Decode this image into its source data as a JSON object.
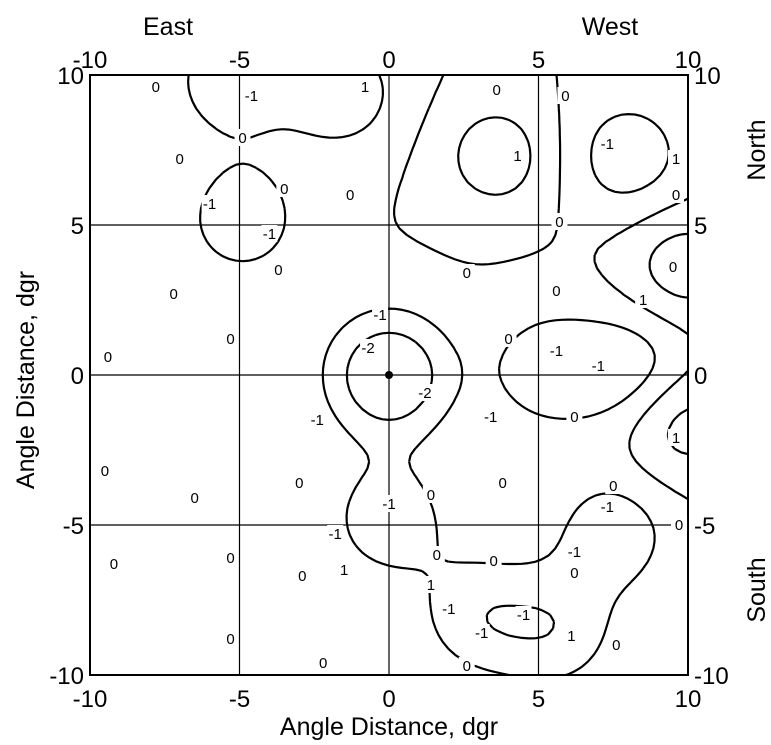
{
  "chart_data": {
    "type": "contour",
    "x_axis": {
      "label": "Angle Distance, dgr",
      "range": [
        -10,
        10
      ],
      "ticks": [
        -10,
        -5,
        0,
        5,
        10
      ]
    },
    "y_axis": {
      "label": "Angle Distance, dgr",
      "range": [
        -10,
        10
      ],
      "ticks": [
        -10,
        -5,
        0,
        5,
        10
      ]
    },
    "direction_labels": {
      "top_left": "East",
      "top_right": "West",
      "right_top": "North",
      "right_bottom": "South"
    },
    "grid": true,
    "center_marker": {
      "x": 0,
      "y": 0
    },
    "line_style_legend": {
      "positive": "solid",
      "zero": "solid",
      "negative": "dashed"
    },
    "contour_levels": [
      -2,
      -1,
      0,
      1
    ],
    "features": [
      {
        "kind": "minimum",
        "x": 0.0,
        "y": 0.0,
        "level": -2
      },
      {
        "kind": "minimum",
        "x": -4.9,
        "y": 5.2,
        "level": -1
      },
      {
        "kind": "minimum",
        "x": -5.3,
        "y": 9.8,
        "level": -1
      },
      {
        "kind": "minimum",
        "x": 5.3,
        "y": 0.2,
        "level": -1
      },
      {
        "kind": "minimum",
        "x": 8.2,
        "y": 0.2,
        "level": -1
      },
      {
        "kind": "minimum",
        "x": 8.0,
        "y": 7.3,
        "level": -1
      },
      {
        "kind": "minimum",
        "x": 0.0,
        "y": -4.8,
        "level": -1
      },
      {
        "kind": "minimum",
        "x": 3.0,
        "y": -8.0,
        "level": -1
      },
      {
        "kind": "minimum",
        "x": 5.6,
        "y": -8.5,
        "level": -1
      },
      {
        "kind": "minimum",
        "x": 7.5,
        "y": -5.3,
        "level": -1
      },
      {
        "kind": "minimum",
        "x": -1.6,
        "y": 9.4,
        "level": -1
      },
      {
        "kind": "maximum",
        "x": 9.8,
        "y": 3.6,
        "level": 1
      },
      {
        "kind": "maximum",
        "x": 9.8,
        "y": -1.6,
        "level": 1
      },
      {
        "kind": "maximum",
        "x": 3.6,
        "y": 7.3,
        "level": 1
      }
    ],
    "contour_labels": [
      {
        "text": "0",
        "x": -7.8,
        "y": 9.6
      },
      {
        "text": "-1",
        "x": -4.6,
        "y": 9.3
      },
      {
        "text": "0",
        "x": -4.9,
        "y": 7.9
      },
      {
        "text": "0",
        "x": -7.0,
        "y": 7.2
      },
      {
        "text": "-1",
        "x": -6.0,
        "y": 5.7
      },
      {
        "text": "-1",
        "x": -4.0,
        "y": 4.7
      },
      {
        "text": "0",
        "x": -3.5,
        "y": 6.2
      },
      {
        "text": "0",
        "x": -1.3,
        "y": 6.0
      },
      {
        "text": "1",
        "x": -0.8,
        "y": 9.6
      },
      {
        "text": "0",
        "x": 3.6,
        "y": 9.5
      },
      {
        "text": "0",
        "x": 5.9,
        "y": 9.3
      },
      {
        "text": "1",
        "x": 4.3,
        "y": 7.3
      },
      {
        "text": "-1",
        "x": 7.3,
        "y": 7.7
      },
      {
        "text": "1",
        "x": 9.6,
        "y": 7.2
      },
      {
        "text": "0",
        "x": 9.6,
        "y": 6.0
      },
      {
        "text": "0",
        "x": 5.7,
        "y": 5.1
      },
      {
        "text": "0",
        "x": -3.7,
        "y": 3.5
      },
      {
        "text": "0",
        "x": -7.2,
        "y": 2.7
      },
      {
        "text": "0",
        "x": -9.4,
        "y": 0.6
      },
      {
        "text": "0",
        "x": -5.3,
        "y": 1.2
      },
      {
        "text": "0",
        "x": 5.6,
        "y": 2.8
      },
      {
        "text": "0",
        "x": 9.5,
        "y": 3.6
      },
      {
        "text": "1",
        "x": 8.5,
        "y": 2.5
      },
      {
        "text": "0",
        "x": 2.6,
        "y": 3.4
      },
      {
        "text": "0",
        "x": 4.0,
        "y": 1.2
      },
      {
        "text": "-1",
        "x": -0.3,
        "y": 2.0
      },
      {
        "text": "-2",
        "x": -0.7,
        "y": 0.9
      },
      {
        "text": "-2",
        "x": 1.2,
        "y": -0.6
      },
      {
        "text": "-1",
        "x": 3.4,
        "y": -1.4
      },
      {
        "text": "-1",
        "x": -2.4,
        "y": -1.5
      },
      {
        "text": "-1",
        "x": 5.6,
        "y": 0.8
      },
      {
        "text": "-1",
        "x": 7.0,
        "y": 0.3
      },
      {
        "text": "0",
        "x": 6.2,
        "y": -1.4
      },
      {
        "text": "1",
        "x": 9.6,
        "y": -2.1
      },
      {
        "text": "0",
        "x": -3.0,
        "y": -3.6
      },
      {
        "text": "0",
        "x": 1.4,
        "y": -4.0
      },
      {
        "text": "0",
        "x": 7.5,
        "y": -3.7
      },
      {
        "text": "0",
        "x": 3.8,
        "y": -3.6
      },
      {
        "text": "-1",
        "x": 0.0,
        "y": -4.3
      },
      {
        "text": "-1",
        "x": -1.8,
        "y": -5.3
      },
      {
        "text": "0",
        "x": -9.5,
        "y": -3.2
      },
      {
        "text": "0",
        "x": -6.5,
        "y": -4.1
      },
      {
        "text": "1",
        "x": -1.5,
        "y": -6.5
      },
      {
        "text": "1",
        "x": 1.4,
        "y": -7.0
      },
      {
        "text": "0",
        "x": 1.6,
        "y": -6.0
      },
      {
        "text": "-1",
        "x": 2.0,
        "y": -7.8
      },
      {
        "text": "-1",
        "x": 3.1,
        "y": -8.6
      },
      {
        "text": "-1",
        "x": 6.2,
        "y": -5.9
      },
      {
        "text": "-1",
        "x": 7.3,
        "y": -4.4
      },
      {
        "text": "0",
        "x": 9.7,
        "y": -5.0
      },
      {
        "text": "0",
        "x": -5.3,
        "y": -6.1
      },
      {
        "text": "0",
        "x": -9.2,
        "y": -6.3
      },
      {
        "text": "0",
        "x": -2.9,
        "y": -6.7
      },
      {
        "text": "0",
        "x": 3.5,
        "y": -6.2
      },
      {
        "text": "0",
        "x": 6.2,
        "y": -6.6
      },
      {
        "text": "-1",
        "x": 4.5,
        "y": -8.0
      },
      {
        "text": "1",
        "x": 6.1,
        "y": -8.7
      },
      {
        "text": "0",
        "x": 7.6,
        "y": -9.0
      },
      {
        "text": "0",
        "x": -5.3,
        "y": -8.8
      },
      {
        "text": "0",
        "x": -2.2,
        "y": -9.6
      },
      {
        "text": "0",
        "x": 2.6,
        "y": -9.7
      }
    ]
  }
}
